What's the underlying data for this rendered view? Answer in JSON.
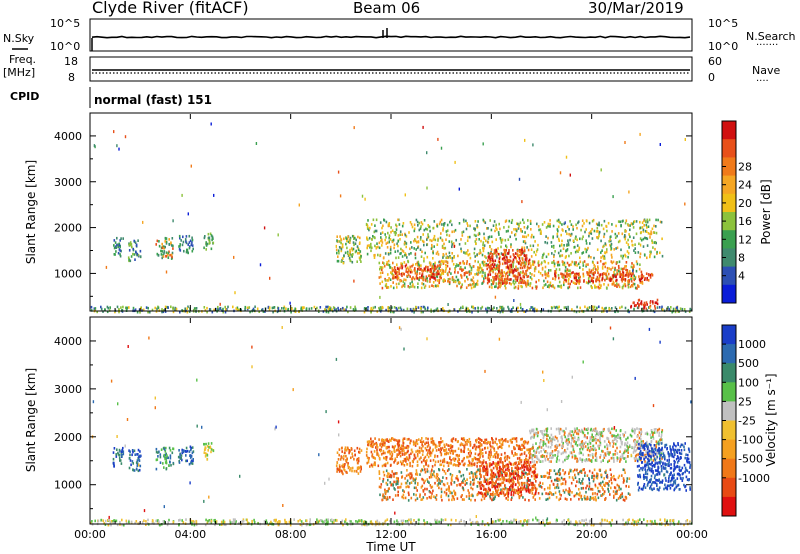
{
  "header": {
    "station": "Clyde River (fitACF)",
    "beam": "Beam 06",
    "date": "30/Mar/2019"
  },
  "nsky_panel": {
    "left_label": "N.Sky",
    "left_ticks": [
      "10^5",
      "10^0"
    ],
    "right_label": "N.Search",
    "right_ticks": [
      "10^5",
      "10^0"
    ],
    "right_line_marker": "·······"
  },
  "freq_panel": {
    "left_label_1": "Freq.",
    "left_label_2": "[MHz]",
    "left_ticks": [
      "18",
      "8"
    ],
    "right_label": "Nave",
    "right_ticks": [
      "60",
      "0"
    ],
    "right_line_marker": "····"
  },
  "cpid_panel": {
    "label": "CPID",
    "mode_text": "normal (fast) 151"
  },
  "chart_data": [
    {
      "type": "heatmap",
      "panel": "power",
      "ylabel": "Slant Range [km]",
      "ylim": [
        180,
        4500
      ],
      "yticks": [
        1000,
        2000,
        3000,
        4000
      ],
      "xlim": [
        0,
        24
      ],
      "colorbar_label": "Power [dB]",
      "colorbar_ticks": [
        "4",
        "8",
        "12",
        "16",
        "20",
        "24",
        "28"
      ],
      "colorbar_colors": [
        "#0a1dd8",
        "#2c4fb4",
        "#3f8a6e",
        "#3aa050",
        "#8cc23c",
        "#f0c018",
        "#f5a623",
        "#f07a1a",
        "#e8501a",
        "#d01010"
      ],
      "scatter_regions": [
        {
          "t0": 0.9,
          "t1": 1.3,
          "r0": 1400,
          "r1": 1800,
          "c": [
            1,
            2,
            3
          ]
        },
        {
          "t0": 1.5,
          "t1": 2.0,
          "r0": 1300,
          "r1": 1750,
          "c": [
            1,
            2,
            3,
            4
          ]
        },
        {
          "t0": 2.6,
          "t1": 3.3,
          "r0": 1350,
          "r1": 1800,
          "c": [
            2,
            3,
            6,
            8
          ]
        },
        {
          "t0": 3.5,
          "t1": 4.1,
          "r0": 1450,
          "r1": 1850,
          "c": [
            1,
            2,
            3
          ]
        },
        {
          "t0": 4.5,
          "t1": 4.9,
          "r0": 1550,
          "r1": 1900,
          "c": [
            2,
            3,
            4
          ]
        },
        {
          "t0": 9.8,
          "t1": 10.8,
          "r0": 1250,
          "r1": 1850,
          "c": [
            2,
            3,
            4,
            5,
            6
          ]
        },
        {
          "t0": 11.0,
          "t1": 22.8,
          "r0": 1350,
          "r1": 2200,
          "c": [
            2,
            3,
            4,
            5,
            6
          ]
        },
        {
          "t0": 11.5,
          "t1": 22.0,
          "r0": 700,
          "r1": 1300,
          "c": [
            5,
            6,
            7,
            8,
            3,
            4
          ]
        },
        {
          "t0": 15.8,
          "t1": 17.5,
          "r0": 800,
          "r1": 1550,
          "c": [
            7,
            8,
            9
          ]
        },
        {
          "t0": 12.0,
          "t1": 14.0,
          "r0": 900,
          "r1": 1200,
          "c": [
            7,
            8,
            9
          ]
        },
        {
          "t0": 18.5,
          "t1": 22.5,
          "r0": 850,
          "r1": 1050,
          "c": [
            7,
            8,
            9
          ]
        },
        {
          "t0": 21.5,
          "t1": 22.6,
          "r0": 250,
          "r1": 450,
          "c": [
            8,
            9
          ]
        },
        {
          "t0": 0,
          "t1": 24,
          "r0": 180,
          "r1": 300,
          "c": [
            1,
            2,
            3,
            4,
            5
          ]
        }
      ]
    },
    {
      "type": "heatmap",
      "panel": "velocity",
      "ylabel": "Slant Range [km]",
      "ylim": [
        180,
        4500
      ],
      "yticks": [
        1000,
        2000,
        3000,
        4000
      ],
      "xlim": [
        0,
        24
      ],
      "xticks": [
        "00:00",
        "04:00",
        "08:00",
        "12:00",
        "16:00",
        "20:00",
        "00:00"
      ],
      "xlabel": "Time UT",
      "colorbar_label": "Velocity [m s⁻¹]",
      "colorbar_ticks": [
        "1000",
        "500",
        "100",
        "25",
        "-25",
        "-100",
        "-500",
        "-1000"
      ],
      "colorbar_colors": [
        "#1a3ec8",
        "#2c6ab0",
        "#3a8a6a",
        "#58c048",
        "#c0c0c0",
        "#f0c030",
        "#f5a020",
        "#f07818",
        "#e84a14",
        "#e01010"
      ],
      "scatter_regions": [
        {
          "t0": 0.9,
          "t1": 1.3,
          "r0": 1400,
          "r1": 1800,
          "c": [
            0,
            1,
            2
          ]
        },
        {
          "t0": 1.5,
          "t1": 2.0,
          "r0": 1300,
          "r1": 1750,
          "c": [
            0,
            1,
            2
          ]
        },
        {
          "t0": 2.6,
          "t1": 3.3,
          "r0": 1350,
          "r1": 1800,
          "c": [
            1,
            2,
            3
          ]
        },
        {
          "t0": 3.5,
          "t1": 4.1,
          "r0": 1450,
          "r1": 1850,
          "c": [
            0,
            1,
            2
          ]
        },
        {
          "t0": 4.5,
          "t1": 4.9,
          "r0": 1550,
          "r1": 1900,
          "c": [
            3,
            5
          ]
        },
        {
          "t0": 9.8,
          "t1": 10.8,
          "r0": 1250,
          "r1": 1800,
          "c": [
            7,
            8,
            6
          ]
        },
        {
          "t0": 11.0,
          "t1": 17.5,
          "r0": 1400,
          "r1": 2000,
          "c": [
            6,
            7,
            8
          ]
        },
        {
          "t0": 11.5,
          "t1": 21.5,
          "r0": 700,
          "r1": 1350,
          "c": [
            2,
            7,
            8,
            6
          ]
        },
        {
          "t0": 15.5,
          "t1": 17.8,
          "r0": 800,
          "r1": 1500,
          "c": [
            7,
            8,
            9
          ]
        },
        {
          "t0": 17.5,
          "t1": 22.8,
          "r0": 1500,
          "r1": 2200,
          "c": [
            4,
            4,
            3,
            7
          ]
        },
        {
          "t0": 21.8,
          "t1": 23.9,
          "r0": 900,
          "r1": 1900,
          "c": [
            0,
            1,
            0
          ]
        },
        {
          "t0": 0,
          "t1": 24,
          "r0": 180,
          "r1": 300,
          "c": [
            4,
            5,
            3
          ]
        }
      ]
    }
  ]
}
